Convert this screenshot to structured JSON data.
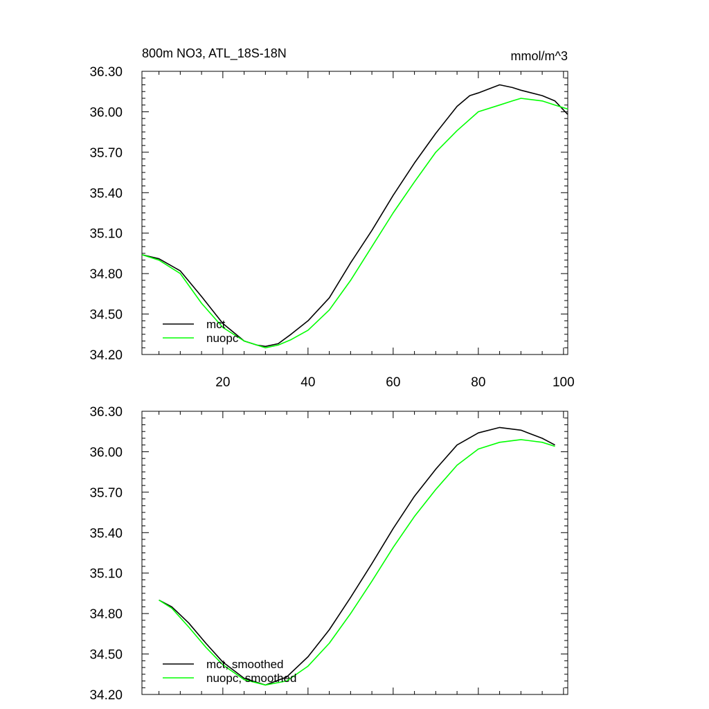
{
  "chart_data": [
    {
      "type": "line",
      "title": "800m NO3, ATL_18S-18N",
      "units": "mmol/m^3",
      "xlabel": "",
      "ylabel": "",
      "xlim": [
        1,
        101
      ],
      "ylim": [
        34.2,
        36.3
      ],
      "yticks": [
        "34.20",
        "34.50",
        "34.80",
        "35.10",
        "35.40",
        "35.70",
        "36.00",
        "36.30"
      ],
      "xticks": [
        "20",
        "40",
        "60",
        "80",
        "100"
      ],
      "legend": {
        "placement": "bottom-left",
        "entries": [
          "mct",
          "nuopc"
        ]
      },
      "series": [
        {
          "name": "mct",
          "color": "#000000",
          "x": [
            1,
            5,
            10,
            15,
            20,
            25,
            28,
            30,
            33,
            36,
            40,
            45,
            50,
            55,
            60,
            65,
            70,
            75,
            78,
            80,
            85,
            88,
            90,
            95,
            98,
            101
          ],
          "y": [
            34.94,
            34.91,
            34.82,
            34.63,
            34.43,
            34.3,
            34.27,
            34.26,
            34.28,
            34.35,
            34.45,
            34.62,
            34.88,
            35.12,
            35.38,
            35.62,
            35.84,
            36.04,
            36.12,
            36.14,
            36.2,
            36.18,
            36.16,
            36.12,
            36.08,
            35.98
          ]
        },
        {
          "name": "nuopc",
          "color": "#00ff00",
          "x": [
            1,
            5,
            10,
            15,
            20,
            25,
            28,
            30,
            33,
            36,
            40,
            45,
            50,
            55,
            60,
            65,
            70,
            75,
            80,
            85,
            88,
            90,
            95,
            98,
            101
          ],
          "y": [
            34.94,
            34.9,
            34.8,
            34.58,
            34.4,
            34.3,
            34.27,
            34.25,
            34.27,
            34.31,
            34.38,
            34.53,
            34.75,
            35.0,
            35.25,
            35.48,
            35.7,
            35.86,
            36.0,
            36.05,
            36.08,
            36.1,
            36.08,
            36.05,
            36.02
          ]
        }
      ]
    },
    {
      "type": "line",
      "title": "",
      "xlabel": "",
      "ylabel": "",
      "xlim": [
        1,
        101
      ],
      "ylim": [
        34.2,
        36.3
      ],
      "yticks": [
        "34.20",
        "34.50",
        "34.80",
        "35.10",
        "35.40",
        "35.70",
        "36.00",
        "36.30"
      ],
      "legend": {
        "placement": "bottom-left",
        "entries": [
          "mct, smoothed",
          "nuopc, smoothed"
        ]
      },
      "series": [
        {
          "name": "mct, smoothed",
          "color": "#000000",
          "x": [
            5,
            8,
            12,
            16,
            20,
            25,
            30,
            35,
            40,
            45,
            50,
            55,
            60,
            65,
            70,
            75,
            80,
            85,
            90,
            95,
            98
          ],
          "y": [
            34.9,
            34.85,
            34.73,
            34.58,
            34.44,
            34.32,
            34.27,
            34.33,
            34.48,
            34.68,
            34.92,
            35.17,
            35.43,
            35.67,
            35.87,
            36.05,
            36.14,
            36.18,
            36.16,
            36.1,
            36.05
          ]
        },
        {
          "name": "nuopc, smoothed",
          "color": "#00ff00",
          "x": [
            5,
            8,
            12,
            16,
            20,
            25,
            30,
            35,
            40,
            45,
            50,
            55,
            60,
            65,
            70,
            75,
            80,
            85,
            90,
            95,
            98
          ],
          "y": [
            34.9,
            34.84,
            34.7,
            34.55,
            34.42,
            34.31,
            34.27,
            34.3,
            34.41,
            34.58,
            34.8,
            35.04,
            35.29,
            35.52,
            35.72,
            35.9,
            36.02,
            36.07,
            36.09,
            36.07,
            36.04
          ]
        }
      ]
    }
  ]
}
